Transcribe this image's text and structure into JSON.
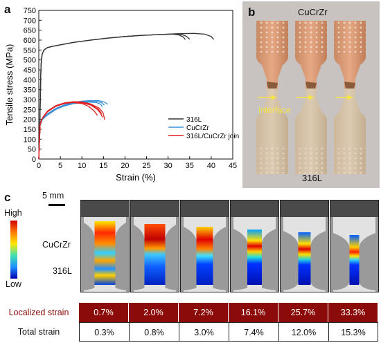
{
  "panels": {
    "a": "a",
    "b": "b",
    "c": "c"
  },
  "chart_data": {
    "type": "line",
    "xlabel": "Strain (%)",
    "ylabel": "Tensile stress (MPa)",
    "xlim": [
      0,
      45
    ],
    "ylim": [
      0,
      750
    ],
    "xticks": [
      0,
      5,
      10,
      15,
      20,
      25,
      30,
      35,
      40,
      45
    ],
    "yticks": [
      0,
      50,
      100,
      150,
      200,
      250,
      300,
      350,
      400,
      450,
      500,
      550,
      600,
      650,
      700,
      750
    ],
    "grid": false,
    "legend_placement": "bottom-right",
    "series": [
      {
        "name": "316L",
        "color": "#333333",
        "curves": [
          {
            "x": [
              0,
              0.25,
              0.45,
              0.6,
              0.8,
              1.2,
              2,
              3,
              5,
              8,
              12,
              16,
              20,
              24,
              28,
              31,
              32.5,
              33.5,
              34
            ],
            "y": [
              0,
              190,
              420,
              500,
              530,
              550,
              562,
              568,
              576,
              588,
              600,
              610,
              618,
              624,
              628,
              630,
              626,
              616,
              603
            ]
          },
          {
            "x": [
              0,
              0.25,
              0.45,
              0.6,
              0.8,
              1.2,
              2,
              3,
              5,
              8,
              12,
              16,
              20,
              24,
              28,
              31,
              33,
              34.2,
              35
            ],
            "y": [
              0,
              190,
              420,
              500,
              530,
              550,
              562,
              568,
              576,
              588,
              600,
              610,
              618,
              624,
              628,
              631,
              629,
              620,
              605
            ]
          },
          {
            "x": [
              0,
              0.25,
              0.45,
              0.6,
              0.8,
              1.2,
              2,
              3,
              5,
              8,
              12,
              16,
              20,
              24,
              28,
              32,
              36,
              38.5,
              40,
              40.6
            ],
            "y": [
              0,
              190,
              420,
              500,
              530,
              550,
              562,
              568,
              576,
              588,
              600,
              610,
              618,
              624,
              628,
              632,
              634,
              630,
              618,
              603
            ]
          }
        ]
      },
      {
        "name": "CuCrZr",
        "color": "#3a8fd6",
        "curves": [
          {
            "x": [
              0,
              0.3,
              0.8,
              2,
              4,
              6,
              8,
              10,
              12,
              13.5,
              14.6,
              15.2
            ],
            "y": [
              0,
              170,
              200,
              225,
              252,
              270,
              281,
              288,
              291,
              290,
              284,
              272
            ]
          },
          {
            "x": [
              0,
              0.3,
              0.8,
              2,
              4,
              6,
              8,
              10,
              12,
              14,
              15.3,
              16
            ],
            "y": [
              0,
              172,
              202,
              228,
              256,
              274,
              285,
              292,
              295,
              294,
              287,
              276
            ]
          },
          {
            "x": [
              0,
              0.3,
              0.8,
              2,
              4,
              6,
              8,
              10,
              12,
              13.3,
              14.2,
              14.8
            ],
            "y": [
              0,
              168,
              198,
              222,
              250,
              268,
              279,
              285,
              287,
              285,
              278,
              265
            ]
          }
        ]
      },
      {
        "name": "316L/CuCrZr joint",
        "color": "#e02020",
        "curves": [
          {
            "x": [
              0,
              0.3,
              0.8,
              2,
              4,
              6,
              8,
              10,
              12,
              13.5,
              14.3,
              14.8
            ],
            "y": [
              0,
              175,
              205,
              240,
              268,
              282,
              287,
              284,
              272,
              252,
              232,
              210
            ]
          },
          {
            "x": [
              0,
              0.3,
              0.8,
              2,
              4,
              6,
              8,
              10,
              12,
              14,
              14.9,
              15.3
            ],
            "y": [
              0,
              176,
              206,
              242,
              270,
              284,
              289,
              288,
              278,
              257,
              234,
              198
            ]
          },
          {
            "x": [
              0,
              0.3,
              0.8,
              2,
              4,
              6,
              8,
              10,
              11.5,
              12.8,
              13.6
            ],
            "y": [
              0,
              174,
              204,
              238,
              266,
              280,
              285,
              280,
              266,
              244,
              220
            ]
          },
          {
            "x": [
              0,
              0.3,
              0.8,
              2,
              4,
              6,
              8,
              10,
              12,
              13.8,
              14.6
            ],
            "y": [
              0,
              175,
              205,
              240,
              268,
              282,
              288,
              286,
              275,
              252,
              228
            ]
          }
        ]
      }
    ]
  },
  "photo": {
    "top_label": "CuCrZr",
    "bottom_label": "316L",
    "interface_label": "Interface",
    "arrow_color": "#f5e642"
  },
  "dic": {
    "scale_bar_label": "5 mm",
    "colorbar_high": "High",
    "colorbar_low": "Low",
    "material_top": "CuCrZr",
    "material_bottom": "316L",
    "localized_strain_label": "Localized strain",
    "total_strain_label": "Total strain",
    "localized_strain": [
      "0.7%",
      "2.0%",
      "7.2%",
      "16.1%",
      "25.7%",
      "33.3%"
    ],
    "total_strain": [
      "0.3%",
      "0.8%",
      "3.0%",
      "7.4%",
      "12.0%",
      "15.3%"
    ],
    "localized_color": "#8b0a0a"
  }
}
